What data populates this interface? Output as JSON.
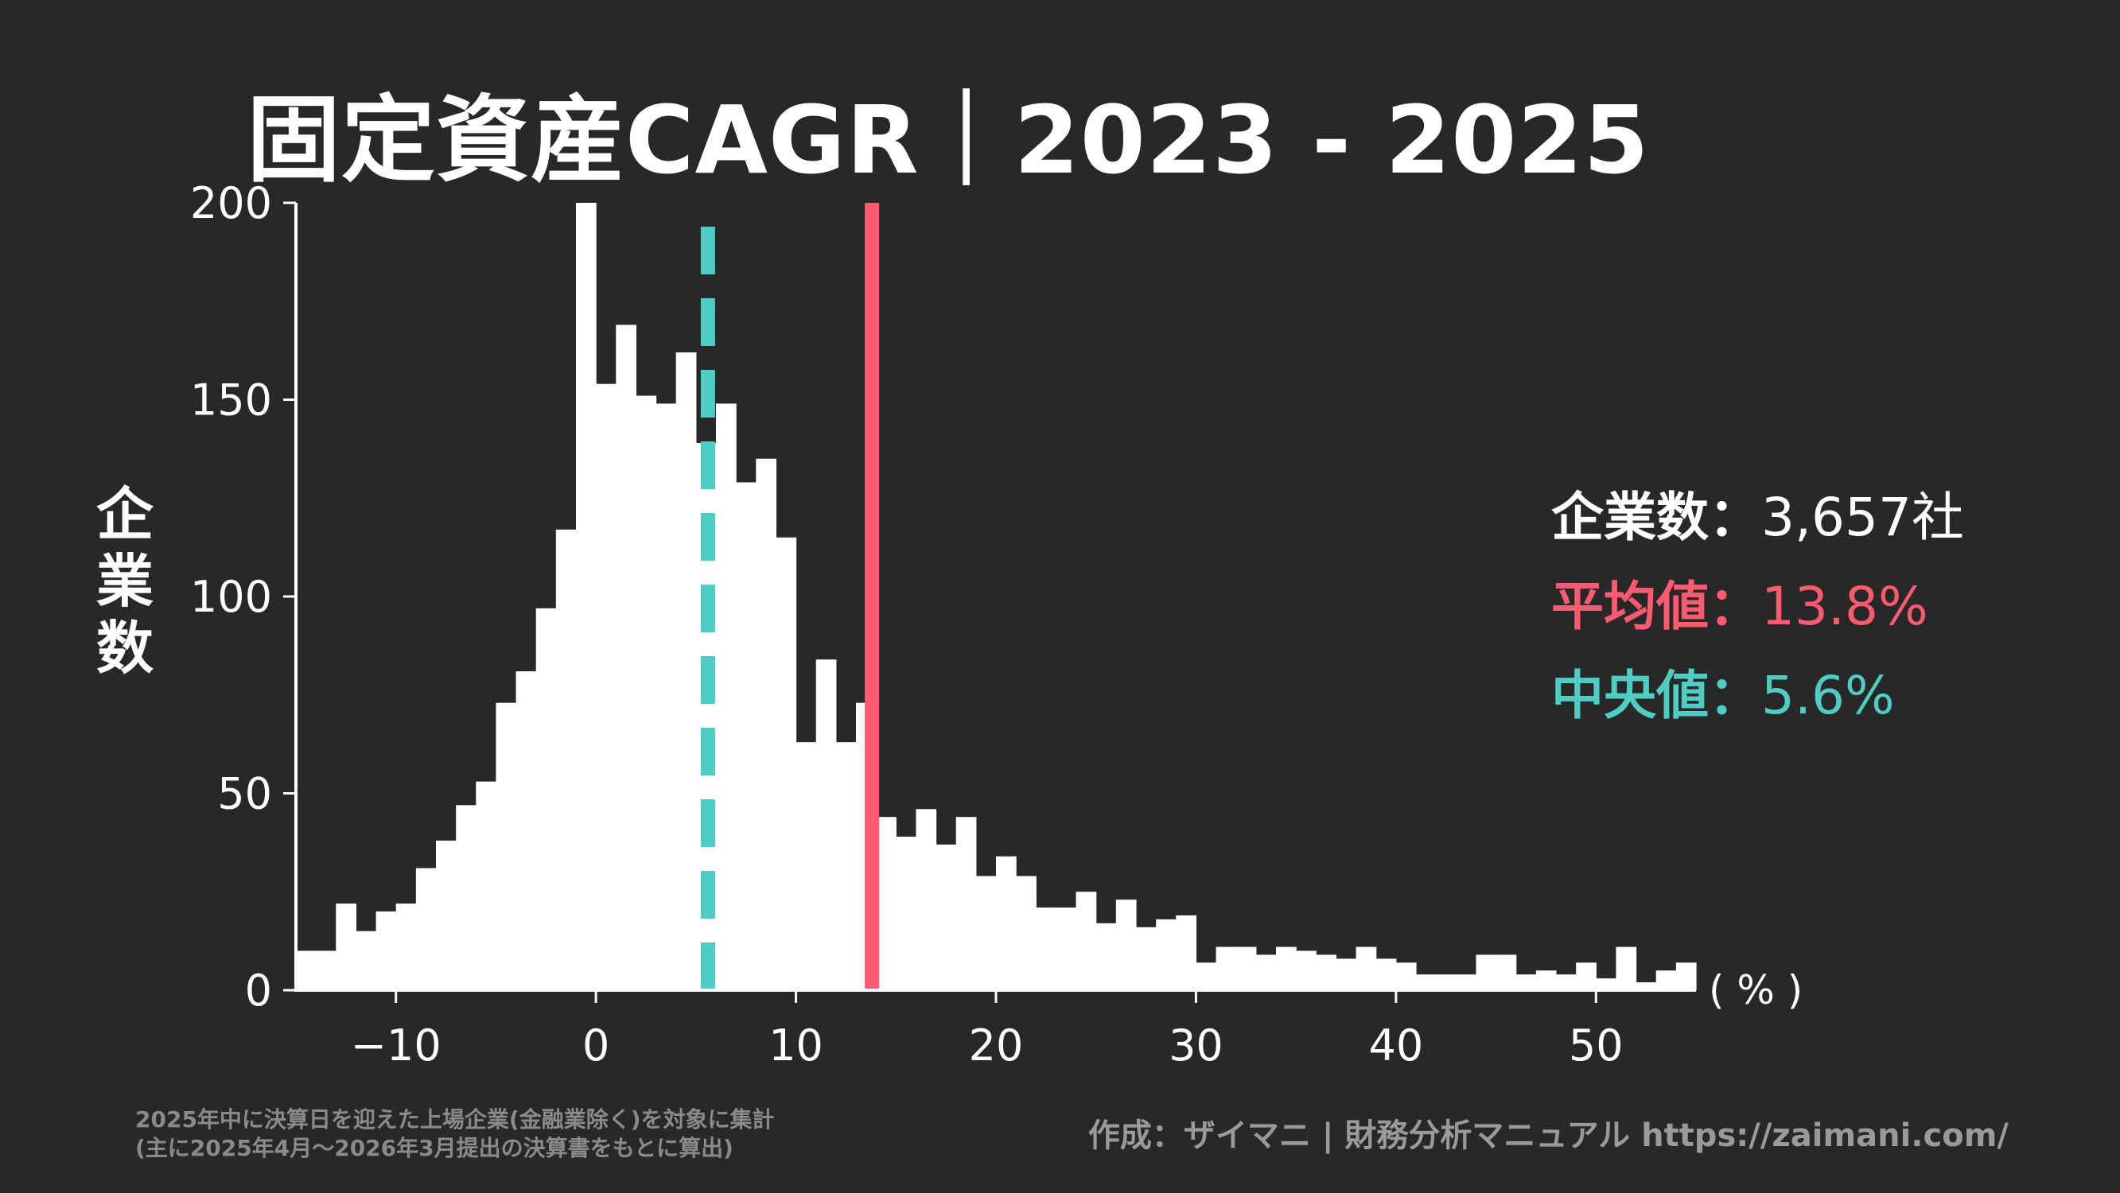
{
  "title": "固定資産CAGR｜2023 - 2025",
  "stats": {
    "count_label": "企業数",
    "count_value": "3,657社",
    "mean_label": "平均値",
    "mean_value": "13.8%",
    "median_label": "中央値",
    "median_value": "5.6%",
    "separator": "："
  },
  "note": {
    "line1": "2025年中に決算日を迎えた上場企業(金融業除く)を対象に集計",
    "line2": "(主に2025年4月〜2026年3月提出の決算書をもとに算出)"
  },
  "credit": "作成：ザイマニ | 財務分析マニュアル https://zaimani.com/",
  "colors": {
    "background": "#282828",
    "bars": "#ffffff",
    "mean": "#ff5a70",
    "median": "#4ecdc4"
  },
  "chart_data": {
    "type": "bar",
    "title": "固定資産CAGR｜2023 - 2025",
    "xlabel": "( % )",
    "ylabel": "企業数",
    "xlim": [
      -15,
      55
    ],
    "ylim": [
      0,
      200
    ],
    "xticks": [
      -10,
      0,
      10,
      20,
      30,
      40,
      50
    ],
    "xtick_labels": [
      "−10",
      "0",
      "10",
      "20",
      "30",
      "40",
      "50"
    ],
    "yticks": [
      0,
      50,
      100,
      150,
      200
    ],
    "bin_width": 1,
    "bin_start": -15,
    "values": [
      10,
      10,
      22,
      15,
      20,
      22,
      31,
      38,
      47,
      53,
      73,
      81,
      97,
      117,
      204,
      154,
      169,
      151,
      149,
      162,
      139,
      149,
      129,
      135,
      115,
      63,
      84,
      63,
      73,
      44,
      39,
      46,
      37,
      44,
      29,
      34,
      29,
      21,
      21,
      25,
      17,
      23,
      16,
      18,
      19,
      7,
      11,
      11,
      9,
      11,
      10,
      9,
      8,
      11,
      8,
      7,
      4,
      4,
      4,
      9,
      9,
      4,
      5,
      4,
      7,
      3,
      11,
      2,
      5,
      7
    ],
    "mean": 13.8,
    "median": 5.6
  }
}
